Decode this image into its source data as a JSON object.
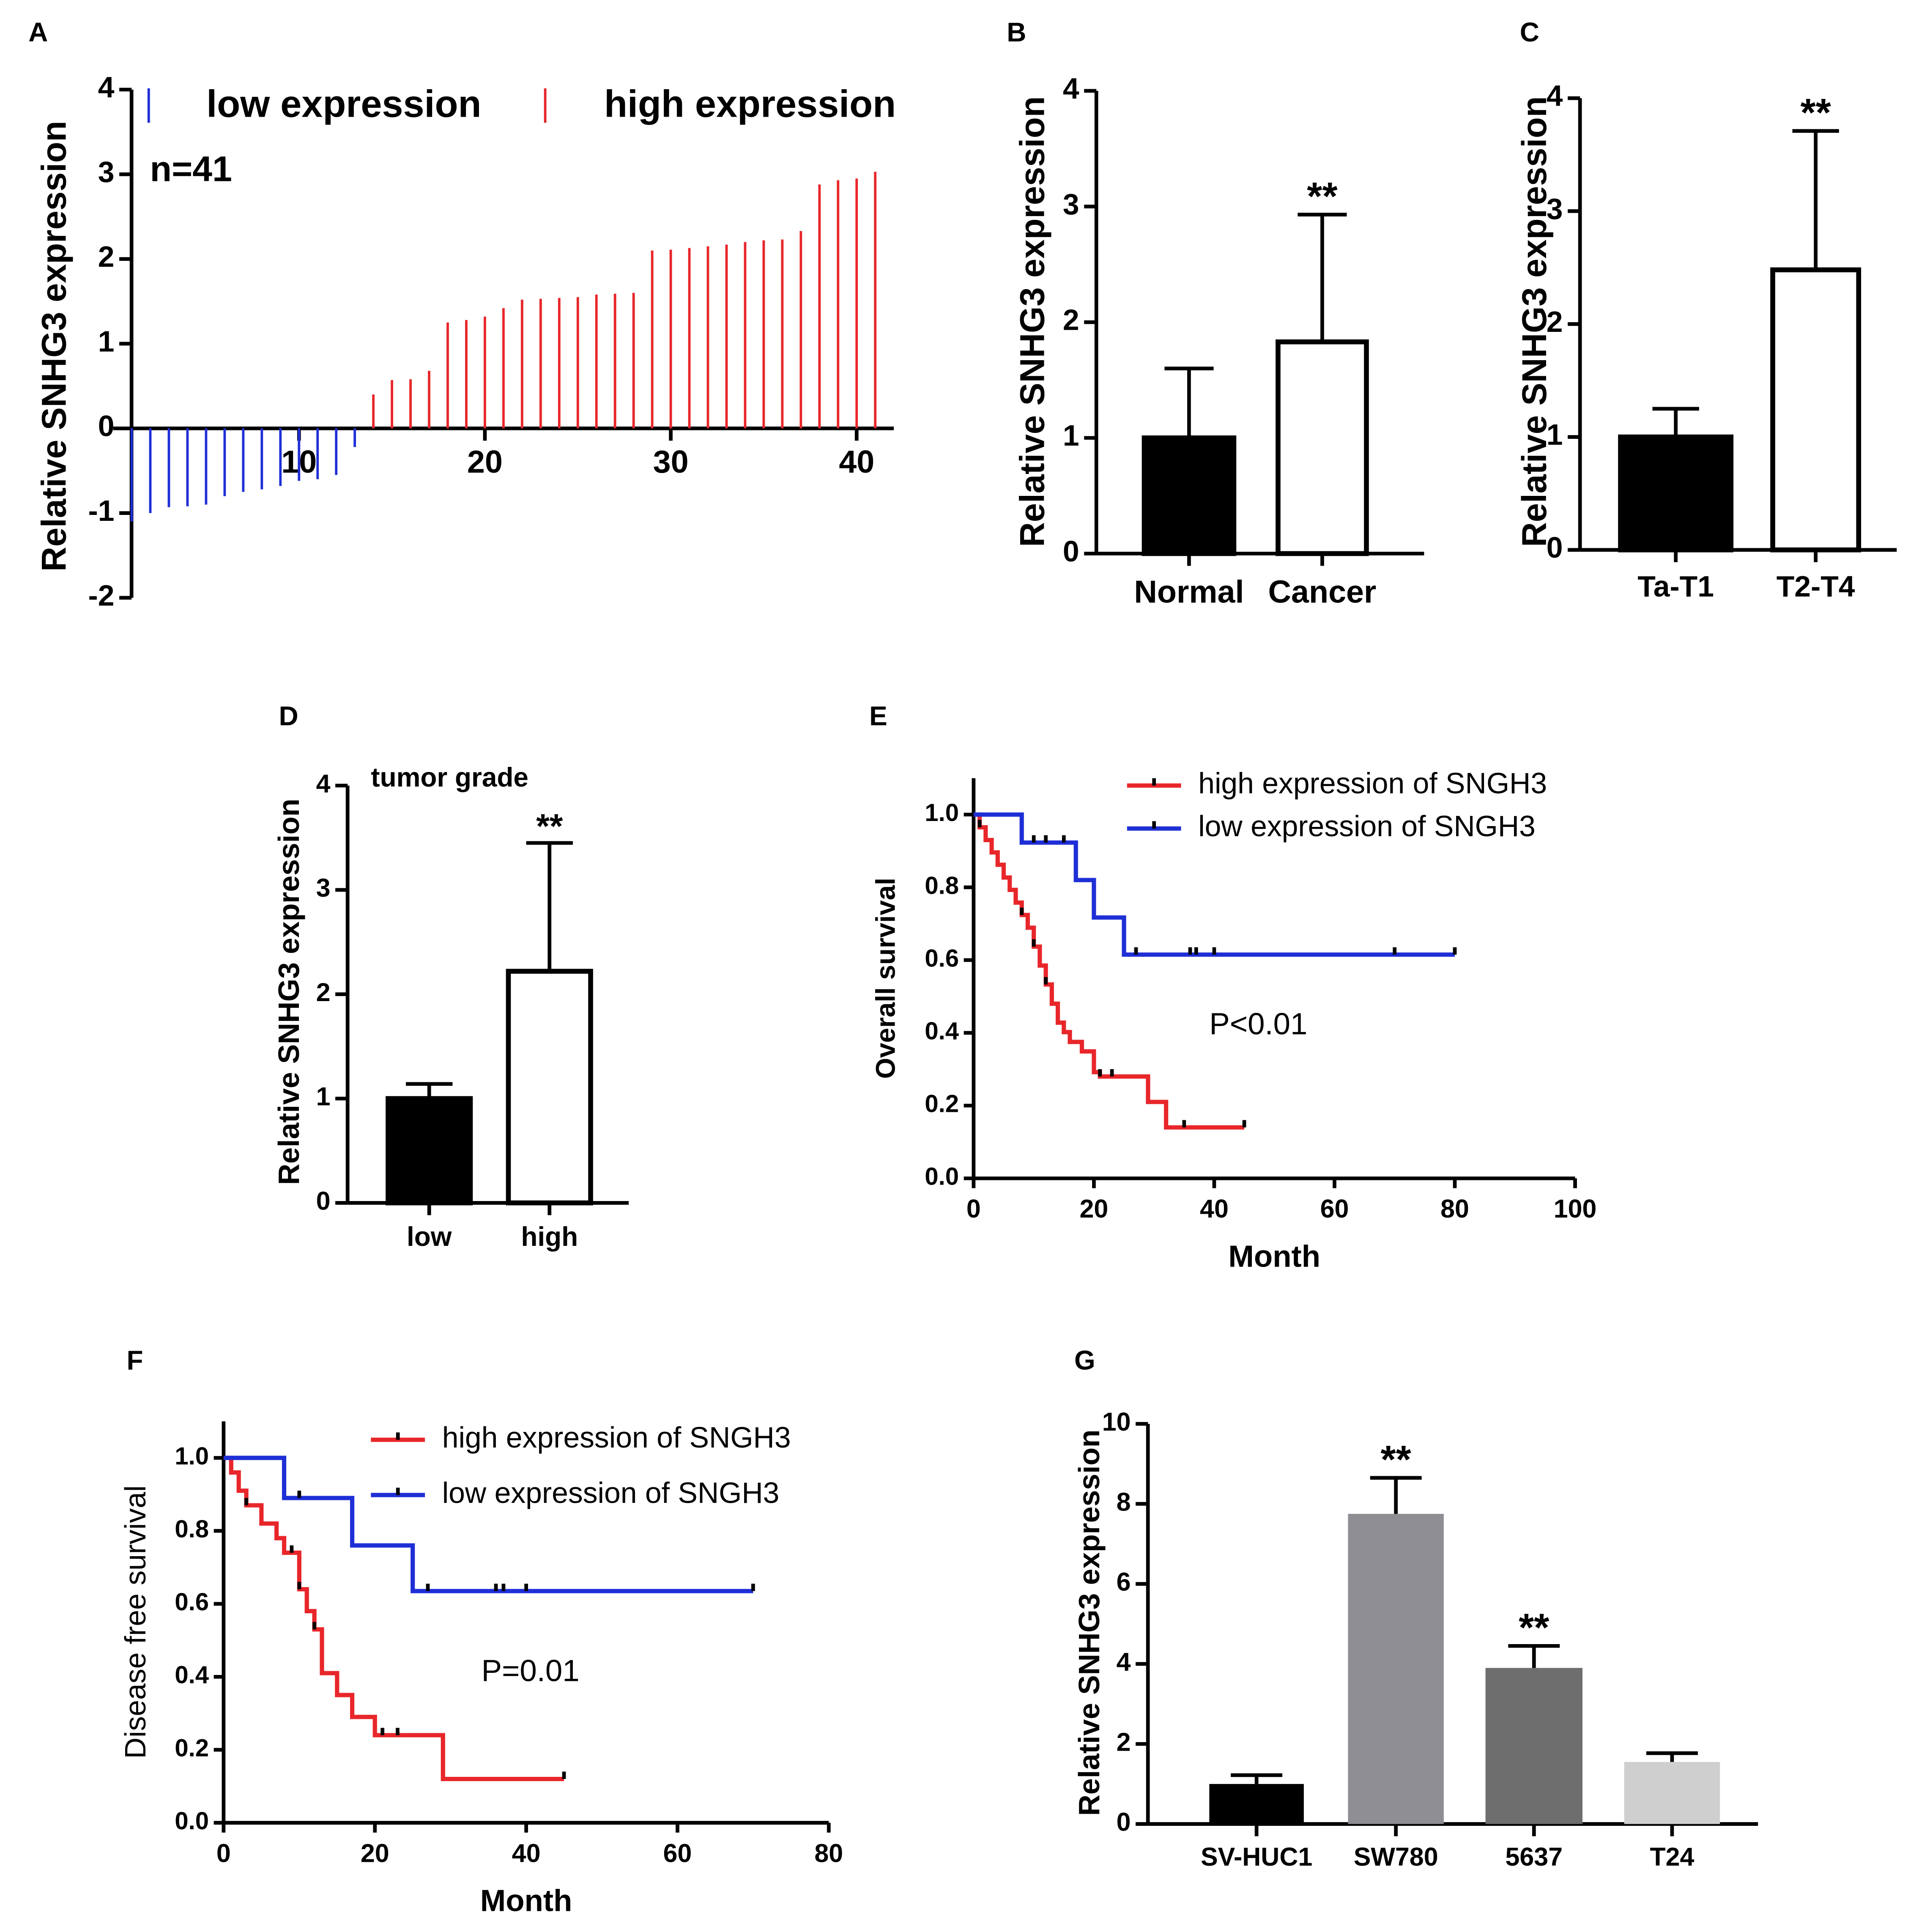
{
  "colors": {
    "axis": "#000000",
    "low": "#1f2fd6",
    "high": "#e8262a",
    "bar_black": "#000000",
    "bar_white": "#ffffff",
    "bar_g_sw780": "#8e8e93",
    "bar_g_5637": "#6e6e6e",
    "bar_g_t24": "#cfcfcf"
  },
  "chart_data": [
    {
      "id": "A",
      "panel_label": "A",
      "type": "bar",
      "subtype": "waterfall",
      "ylabel": "Relative SNHG3 expression",
      "annotation": "n=41",
      "legend": [
        "low expression",
        "high expression"
      ],
      "ylim": [
        -2,
        4
      ],
      "yticks": [
        "-2",
        "-1",
        "0",
        "1",
        "2",
        "3",
        "4"
      ],
      "xlim": [
        0,
        42
      ],
      "xticks": [
        "10",
        "20",
        "30",
        "40"
      ],
      "series": [
        {
          "name": "low expression",
          "x": [
            1,
            2,
            3,
            4,
            5,
            6,
            7,
            8,
            9,
            10,
            11,
            12,
            13
          ],
          "values": [
            -1.1,
            -1.0,
            -0.93,
            -0.92,
            -0.9,
            -0.8,
            -0.75,
            -0.72,
            -0.68,
            -0.62,
            -0.6,
            -0.55,
            -0.22
          ]
        },
        {
          "name": "high expression",
          "x": [
            14,
            15,
            16,
            17,
            18,
            19,
            20,
            21,
            22,
            23,
            24,
            25,
            26,
            27,
            28,
            29,
            30,
            31,
            32,
            33,
            34,
            35,
            36,
            37,
            38,
            39,
            40,
            41
          ],
          "values": [
            0.4,
            0.57,
            0.58,
            0.68,
            1.25,
            1.28,
            1.32,
            1.42,
            1.52,
            1.53,
            1.54,
            1.55,
            1.58,
            1.59,
            1.6,
            2.1,
            2.11,
            2.13,
            2.15,
            2.17,
            2.2,
            2.22,
            2.23,
            2.33,
            2.88,
            2.93,
            2.95,
            3.03
          ]
        }
      ]
    },
    {
      "id": "B",
      "panel_label": "B",
      "type": "bar",
      "ylabel": "Relative SNHG3 expression",
      "ylim": [
        0,
        4
      ],
      "yticks": [
        "0",
        "1",
        "2",
        "3",
        "4"
      ],
      "categories": [
        "Normal",
        "Cancer"
      ],
      "values": [
        1.0,
        1.83
      ],
      "errors": [
        0.6,
        1.1
      ],
      "fills": [
        "bar_black",
        "bar_white"
      ],
      "significance": [
        "",
        "**"
      ]
    },
    {
      "id": "C",
      "panel_label": "C",
      "type": "bar",
      "ylabel": "Relative SNHG3 expression",
      "ylim": [
        0,
        4
      ],
      "yticks": [
        "0",
        "1",
        "2",
        "3",
        "4"
      ],
      "categories": [
        "Ta-T1",
        "T2-T4"
      ],
      "values": [
        1.0,
        2.48
      ],
      "errors": [
        0.25,
        1.23
      ],
      "fills": [
        "bar_black",
        "bar_white"
      ],
      "significance": [
        "",
        "**"
      ]
    },
    {
      "id": "D",
      "panel_label": "D",
      "type": "bar",
      "title": "tumor grade",
      "ylabel": "Relative SNHG3 expression",
      "ylim": [
        0,
        4
      ],
      "yticks": [
        "0",
        "1",
        "2",
        "3",
        "4"
      ],
      "categories": [
        "low",
        "high"
      ],
      "values": [
        1.0,
        2.22
      ],
      "errors": [
        0.14,
        1.23
      ],
      "fills": [
        "bar_black",
        "bar_white"
      ],
      "significance": [
        "",
        "**"
      ]
    },
    {
      "id": "E",
      "panel_label": "E",
      "type": "line",
      "subtype": "kaplan-meier",
      "xlabel": "Month",
      "ylabel": "Overall survival",
      "xlim": [
        0,
        100
      ],
      "ylim": [
        0,
        1.1
      ],
      "xticks": [
        "0",
        "20",
        "40",
        "60",
        "80",
        "100"
      ],
      "yticks": [
        "0.0",
        "0.2",
        "0.4",
        "0.6",
        "0.8",
        "1.0"
      ],
      "annotation": "P<0.01",
      "series": [
        {
          "name": "high expression of SNGH3",
          "color_key": "high",
          "steps": [
            [
              0,
              1.0
            ],
            [
              1,
              0.965
            ],
            [
              2,
              0.93
            ],
            [
              3,
              0.896
            ],
            [
              4,
              0.862
            ],
            [
              5,
              0.827
            ],
            [
              6,
              0.793
            ],
            [
              7,
              0.758
            ],
            [
              8,
              0.724
            ],
            [
              9,
              0.689
            ],
            [
              10,
              0.637
            ],
            [
              11,
              0.585
            ],
            [
              12,
              0.533
            ],
            [
              13,
              0.48
            ],
            [
              14,
              0.428
            ],
            [
              15,
              0.402
            ],
            [
              16,
              0.375
            ],
            [
              18,
              0.349
            ],
            [
              20,
              0.292
            ],
            [
              21,
              0.28
            ],
            [
              29,
              0.21
            ],
            [
              32,
              0.14
            ],
            [
              45,
              0.14
            ]
          ],
          "censor_x": [
            1,
            8,
            10,
            12,
            21,
            23,
            35,
            45
          ]
        },
        {
          "name": "low expression of SNGH3",
          "color_key": "low",
          "steps": [
            [
              0,
              1.0
            ],
            [
              8,
              0.923
            ],
            [
              17,
              0.82
            ],
            [
              20,
              0.717
            ],
            [
              25,
              0.615
            ],
            [
              80,
              0.615
            ]
          ],
          "censor_x": [
            10,
            12,
            15,
            27,
            36,
            37,
            40,
            70,
            80
          ]
        }
      ]
    },
    {
      "id": "F",
      "panel_label": "F",
      "type": "line",
      "subtype": "kaplan-meier",
      "xlabel": "Month",
      "ylabel": "Disease free survival",
      "xlim": [
        0,
        80
      ],
      "ylim": [
        0,
        1.1
      ],
      "xticks": [
        "0",
        "20",
        "40",
        "60",
        "80"
      ],
      "yticks": [
        "0.0",
        "0.2",
        "0.4",
        "0.6",
        "0.8",
        "1.0"
      ],
      "annotation": "P=0.01",
      "series": [
        {
          "name": "high expression of SNGH3",
          "color_key": "high",
          "steps": [
            [
              0,
              1.0
            ],
            [
              1,
              0.96
            ],
            [
              2,
              0.91
            ],
            [
              3,
              0.87
            ],
            [
              5,
              0.82
            ],
            [
              7,
              0.78
            ],
            [
              8,
              0.74
            ],
            [
              10,
              0.64
            ],
            [
              11,
              0.58
            ],
            [
              12,
              0.53
            ],
            [
              13,
              0.41
            ],
            [
              15,
              0.35
            ],
            [
              17,
              0.29
            ],
            [
              20,
              0.24
            ],
            [
              29,
              0.12
            ],
            [
              45,
              0.12
            ]
          ],
          "censor_x": [
            3,
            9,
            10,
            12,
            21,
            23,
            45
          ]
        },
        {
          "name": "low expression of SNGH3",
          "color_key": "low",
          "steps": [
            [
              0,
              1.0
            ],
            [
              8,
              0.89
            ],
            [
              17,
              0.76
            ],
            [
              25,
              0.635
            ],
            [
              70,
              0.635
            ]
          ],
          "censor_x": [
            10,
            27,
            36,
            37,
            40,
            70
          ]
        }
      ]
    },
    {
      "id": "G",
      "panel_label": "G",
      "type": "bar",
      "ylabel": "Relative SNHG3 expression",
      "ylim": [
        0,
        10
      ],
      "yticks": [
        "0",
        "2",
        "4",
        "6",
        "8",
        "10"
      ],
      "categories": [
        "SV-HUC1",
        "SW780",
        "5637",
        "T24"
      ],
      "values": [
        1.0,
        7.75,
        3.9,
        1.55
      ],
      "errors": [
        0.22,
        0.9,
        0.55,
        0.22
      ],
      "fills": [
        "bar_black",
        "bar_g_sw780",
        "bar_g_5637",
        "bar_g_t24"
      ],
      "significance": [
        "",
        "**",
        "**",
        ""
      ]
    }
  ]
}
